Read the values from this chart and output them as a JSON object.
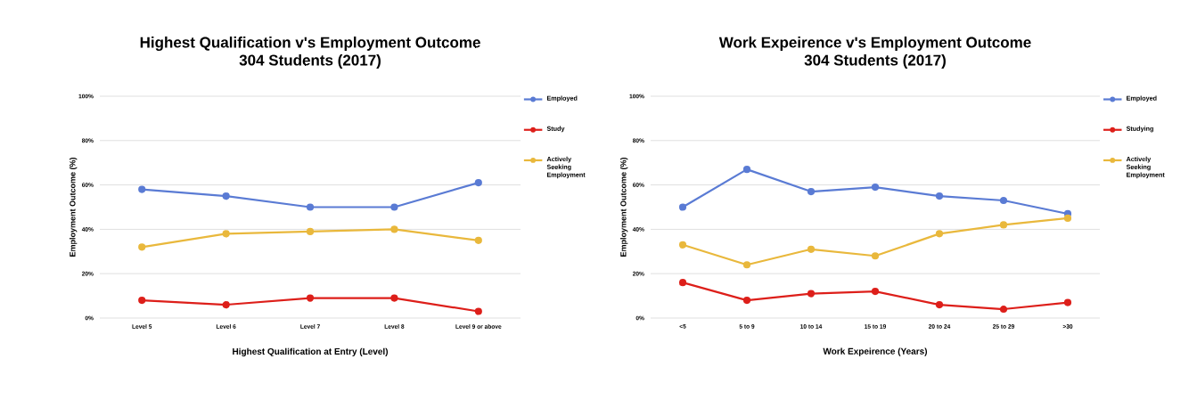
{
  "chart_data": [
    {
      "type": "line",
      "title": "Highest Qualification v's Employment Outcome",
      "subtitle": "304 Students (2017)",
      "xlabel": "Highest Qualification at Entry (Level)",
      "ylabel": "Employment Outcome (%)",
      "categories": [
        "Level 5",
        "Level 6",
        "Level 7",
        "Level 8",
        "Level 9 or above"
      ],
      "series": [
        {
          "name": "Employed",
          "color": "#5a7bd4",
          "values": [
            58,
            55,
            50,
            50,
            61
          ]
        },
        {
          "name": "Study",
          "color": "#dd1f1a",
          "values": [
            8,
            6,
            9,
            9,
            3
          ]
        },
        {
          "name": "Actively Seeking Employment",
          "color": "#e9b83c",
          "values": [
            32,
            38,
            39,
            40,
            35
          ]
        }
      ],
      "ylim": [
        0,
        100
      ],
      "yticks": [
        {
          "value": 0,
          "label": "0%"
        },
        {
          "value": 20,
          "label": "20%"
        },
        {
          "value": 40,
          "label": "40%"
        },
        {
          "value": 60,
          "label": "60%"
        },
        {
          "value": 80,
          "label": "80%"
        },
        {
          "value": 100,
          "label": "100%"
        }
      ],
      "grid": "y",
      "legend": "right",
      "marker": "circle",
      "line_style": "solid"
    },
    {
      "type": "line",
      "title": "Work Expeirence v's Employment Outcome",
      "subtitle": "304 Students (2017)",
      "xlabel": "Work Expeirence (Years)",
      "ylabel": "Employment Outcome (%)",
      "categories": [
        "<5",
        "5 to 9",
        "10 to 14",
        "15 to 19",
        "20 to 24",
        "25 to 29",
        ">30"
      ],
      "series": [
        {
          "name": "Employed",
          "color": "#5a7bd4",
          "values": [
            50,
            67,
            57,
            59,
            55,
            53,
            47
          ]
        },
        {
          "name": "Studying",
          "color": "#dd1f1a",
          "values": [
            16,
            8,
            11,
            12,
            6,
            4,
            7
          ]
        },
        {
          "name": "Actively Seeking Employment",
          "color": "#e9b83c",
          "values": [
            33,
            24,
            31,
            28,
            38,
            42,
            45
          ]
        }
      ],
      "ylim": [
        0,
        100
      ],
      "yticks": [
        {
          "value": 0,
          "label": "0%"
        },
        {
          "value": 20,
          "label": "20%"
        },
        {
          "value": 40,
          "label": "40%"
        },
        {
          "value": 60,
          "label": "60%"
        },
        {
          "value": 80,
          "label": "80%"
        },
        {
          "value": 100,
          "label": "100%"
        }
      ],
      "grid": "y",
      "legend": "right",
      "marker": "circle",
      "line_style": "solid"
    }
  ]
}
